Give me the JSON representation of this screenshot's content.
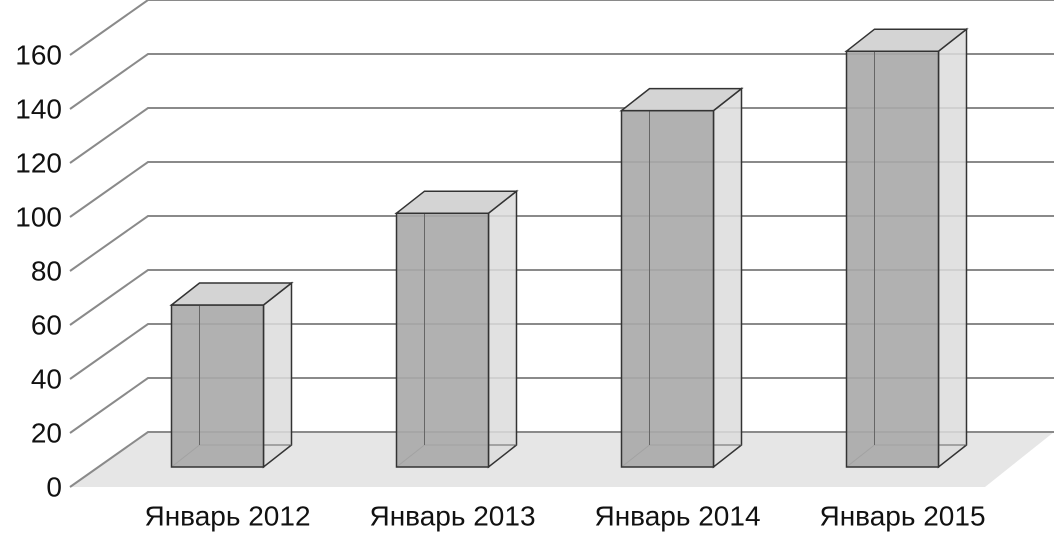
{
  "chart_data": {
    "type": "bar3d",
    "categories": [
      "Январь 2012",
      "Январь 2013",
      "Январь 2014",
      "Январь 2015"
    ],
    "values": [
      60,
      94,
      132,
      154
    ],
    "color": "#a9a9a9",
    "ylim": [
      0,
      160
    ],
    "yticks": [
      0,
      20,
      40,
      60,
      80,
      100,
      120,
      140,
      160
    ],
    "grid": true
  }
}
